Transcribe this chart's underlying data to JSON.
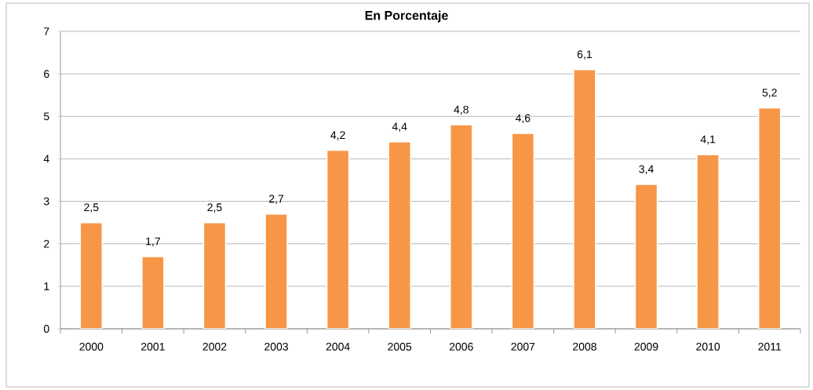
{
  "chart_data": {
    "type": "bar",
    "title": "En Porcentaje",
    "categories": [
      "2000",
      "2001",
      "2002",
      "2003",
      "2004",
      "2005",
      "2006",
      "2007",
      "2008",
      "2009",
      "2010",
      "2011"
    ],
    "values": [
      2.5,
      1.7,
      2.5,
      2.7,
      4.2,
      4.4,
      4.8,
      4.6,
      6.1,
      3.4,
      4.1,
      5.2
    ],
    "value_labels": [
      "2,5",
      "1,7",
      "2,5",
      "2,7",
      "4,2",
      "4,4",
      "4,8",
      "4,6",
      "6,1",
      "3,4",
      "4,1",
      "5,2"
    ],
    "color": "#f79646",
    "ylim": [
      0,
      7
    ],
    "yticks": [
      0,
      1,
      2,
      3,
      4,
      5,
      6,
      7
    ],
    "grid": "y"
  }
}
